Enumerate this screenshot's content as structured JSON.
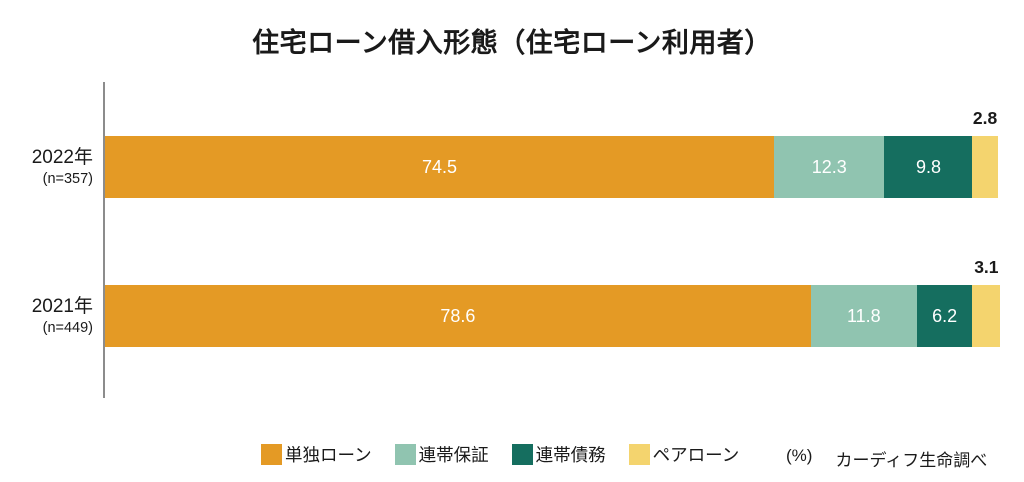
{
  "title": "住宅ローン借入形態（住宅ローン利用者）",
  "chart_data": {
    "type": "bar",
    "orientation": "horizontal",
    "stacked": true,
    "unit": "%",
    "xlim": [
      0,
      100
    ],
    "grid": false,
    "legend_position": "bottom",
    "axis_color": "#8C8C8C",
    "categories": [
      "2022年",
      "2021年"
    ],
    "category_sublabels": [
      "(n=357)",
      "(n=449)"
    ],
    "series": [
      {
        "name": "単独ローン",
        "color": "#E49A25",
        "text_color": "#FFFFFF",
        "label_position": "inside",
        "values": [
          74.5,
          78.6
        ]
      },
      {
        "name": "連帯保証",
        "color": "#90C4B0",
        "text_color": "#FFFFFF",
        "label_position": "inside",
        "values": [
          12.3,
          11.8
        ]
      },
      {
        "name": "連帯債務",
        "color": "#156E5F",
        "text_color": "#FFFFFF",
        "label_position": "inside",
        "values": [
          9.8,
          6.2
        ]
      },
      {
        "name": "ペアローン",
        "color": "#F4D46E",
        "text_color": "#1A1A1A",
        "label_position": "outside",
        "values": [
          2.8,
          3.1
        ]
      }
    ]
  },
  "footer": {
    "unit_label": "(%)",
    "source": "カーディフ生命調べ"
  }
}
